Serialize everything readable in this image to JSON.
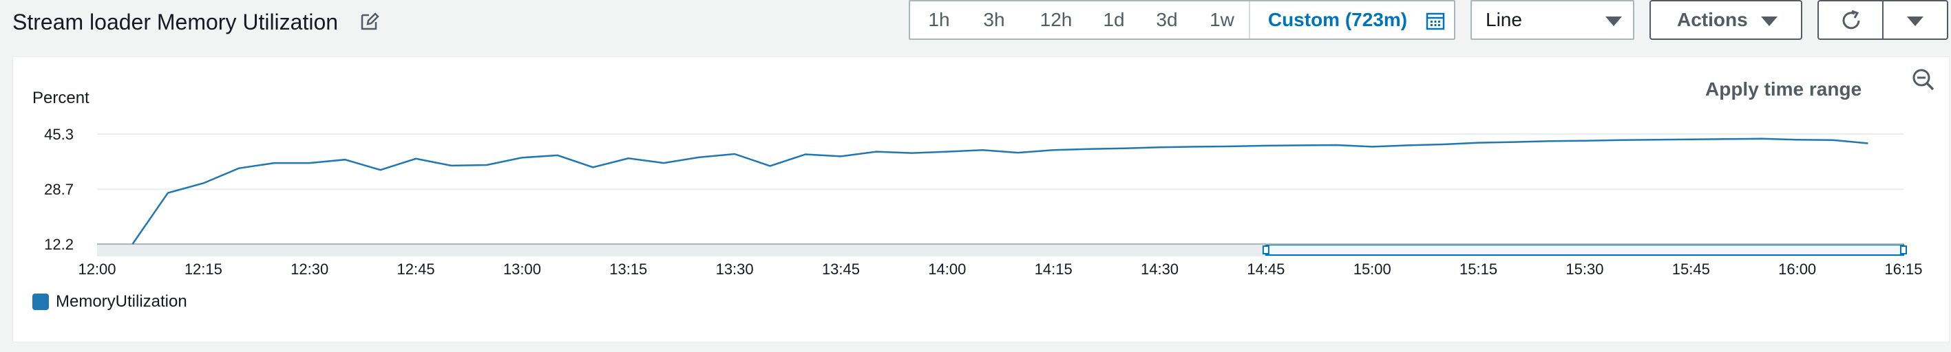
{
  "header": {
    "title": "Stream loader Memory Utilization"
  },
  "time_ranges": [
    "1h",
    "3h",
    "12h",
    "1d",
    "3d",
    "1w"
  ],
  "custom_range_label": "Custom (723m)",
  "chart_type_select": {
    "value": "Line"
  },
  "actions_label": "Actions",
  "colors": {
    "accent": "#0073bb",
    "series": "#1f77b4",
    "grid": "#eaeded"
  },
  "panel": {
    "apply_time_range": "Apply time range",
    "unit_label": "Percent"
  },
  "chart_data": {
    "type": "line",
    "ylabel": "Percent",
    "y_ticks": [
      "45.3",
      "28.7",
      "12.2"
    ],
    "ylim": [
      12.2,
      45.3
    ],
    "x_tick_labels": [
      "12:00",
      "12:15",
      "12:30",
      "12:45",
      "13:00",
      "13:15",
      "13:30",
      "13:45",
      "14:00",
      "14:15",
      "14:30",
      "14:45",
      "15:00",
      "15:15",
      "15:30",
      "15:45",
      "16:00",
      "16:15"
    ],
    "x_range_minutes": [
      0,
      255
    ],
    "grid": true,
    "legend_position": "bottom-left",
    "series": [
      {
        "name": "MemoryUtilization",
        "color": "#1f77b4",
        "x_minutes": [
          5,
          10,
          15,
          20,
          25,
          30,
          35,
          40,
          45,
          50,
          55,
          60,
          65,
          70,
          75,
          80,
          85,
          90,
          95,
          100,
          105,
          110,
          115,
          120,
          125,
          130,
          135,
          140,
          145,
          150,
          155,
          160,
          165,
          170,
          175,
          180,
          185,
          190,
          195,
          200,
          205,
          210,
          215,
          220,
          225,
          230,
          235,
          240,
          245,
          250
        ],
        "values": [
          12.2,
          27.6,
          30.5,
          35.0,
          36.6,
          36.6,
          37.6,
          34.5,
          37.9,
          35.8,
          36.0,
          38.2,
          38.9,
          35.3,
          38.0,
          36.6,
          38.3,
          39.3,
          35.7,
          39.2,
          38.6,
          40.0,
          39.6,
          40.0,
          40.5,
          39.7,
          40.5,
          40.8,
          41.0,
          41.3,
          41.5,
          41.6,
          41.8,
          41.9,
          42.0,
          41.5,
          41.9,
          42.2,
          42.7,
          42.9,
          43.2,
          43.3,
          43.5,
          43.6,
          43.7,
          43.8,
          43.9,
          43.6,
          43.5,
          42.5
        ]
      }
    ],
    "brush_selection_minutes": [
      165,
      255
    ]
  }
}
